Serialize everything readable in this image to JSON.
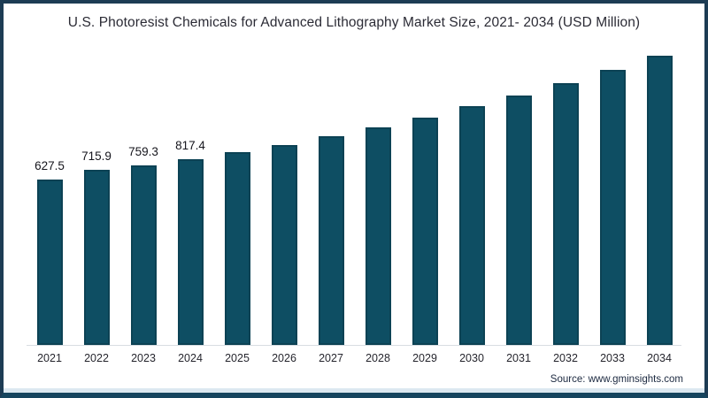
{
  "title": "U.S. Photoresist Chemicals for Advanced Lithography Market Size, 2021- 2034 (USD Million)",
  "source": "Source: www.gminsights.com",
  "colors": {
    "bar": "#0e4e63",
    "bar_edge": "#0c4254",
    "frame_border": "#1d3c54",
    "frame_border_bottom": "#16455e",
    "bottom_strip": "#dce8f0",
    "baseline": "#d8dde2",
    "title_text": "#2b2b35",
    "value_label_text": "#16161d",
    "axis_label_text": "#26262e",
    "source_text": "#1c2940"
  },
  "chart_data": {
    "type": "bar",
    "title": "U.S. Photoresist Chemicals for Advanced Lithography Market Size, 2021- 2034 (USD Million)",
    "xlabel": "",
    "ylabel": "",
    "categories": [
      "2021",
      "2022",
      "2023",
      "2024",
      "2025",
      "2026",
      "2027",
      "2028",
      "2029",
      "2030",
      "2031",
      "2032",
      "2033",
      "2034"
    ],
    "values": [
      627.5,
      715.9,
      759.3,
      817.4,
      880,
      950,
      1030,
      1115,
      1205,
      1305,
      1410,
      1520,
      1645,
      1775
    ],
    "data_labels_shown": [
      "627.5",
      "715.9",
      "759.3",
      "817.4",
      "",
      "",
      "",
      "",
      "",
      "",
      "",
      "",
      "",
      ""
    ],
    "unlabeled_values_estimated": true,
    "legend": "none",
    "gridlines": false,
    "y_axis_shown": false,
    "x_axis_line": "light gray baseline only"
  }
}
